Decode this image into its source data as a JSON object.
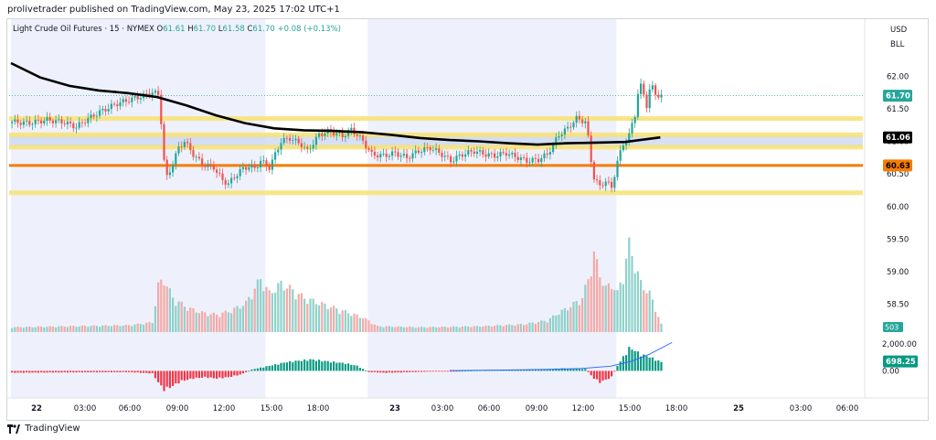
{
  "header": {
    "publisher_line": "prolivetrader published on TradingView.com, May 23, 2025 17:02 UTC+1"
  },
  "footer": {
    "brand": "TradingView"
  },
  "legend": {
    "symbol": "Light Crude Oil Futures · 15 · NYMEX",
    "o_label": "O",
    "o_value": "61.61",
    "h_label": "H",
    "h_value": "61.70",
    "l_label": "L",
    "l_value": "61.58",
    "c_label": "C",
    "c_value": "61.70",
    "change": "+0.08 (+0.13%)"
  },
  "price_scale": {
    "currency": "USD",
    "unit": "BLL"
  },
  "colors": {
    "up": "#26a69a",
    "down": "#ef5350",
    "session_shade": "#eef1fb",
    "ma_line": "#000000",
    "yellow_line": "#f7e27a",
    "orange_line": "#f57c00",
    "blue_zone": "#c9d6f0",
    "last_price_badge": "#26a69a",
    "osc_fast": "#2962ff"
  },
  "chart_data": {
    "type": "candlestick",
    "timeframe": "15",
    "price_axis": {
      "ylim": [
        58.2,
        62.2
      ],
      "ticks": [
        "62.00",
        "61.50",
        "61.00",
        "60.50",
        "60.00",
        "59.50",
        "59.00",
        "58.50"
      ],
      "tick_values": [
        62.0,
        61.5,
        61.0,
        60.5,
        60.0,
        59.5,
        59.0,
        58.5
      ]
    },
    "badges": [
      {
        "label": "61.70",
        "value": 61.7,
        "color": "#26a69a",
        "text_color": "#ffffff"
      },
      {
        "label": "61.06",
        "value": 61.06,
        "color": "#000000",
        "text_color": "#ffffff"
      },
      {
        "label": "60.63",
        "value": 60.63,
        "color": "#f57c00",
        "text_color": "#000000"
      }
    ],
    "last_price": 61.7,
    "x_axis": {
      "ticks": [
        "22",
        "03:00",
        "06:00",
        "09:00",
        "12:00",
        "15:00",
        "18:00",
        "23",
        "03:00",
        "06:00",
        "09:00",
        "12:00",
        "15:00",
        "18:00",
        "25",
        "03:00",
        "06:00"
      ],
      "bold": [
        true,
        false,
        false,
        false,
        false,
        false,
        false,
        true,
        false,
        false,
        false,
        false,
        false,
        false,
        true,
        false,
        false
      ]
    },
    "horizontal_lines": [
      {
        "name": "yellow-level-1",
        "value": 61.35,
        "color": "#f7e27a"
      },
      {
        "name": "yellow-level-2",
        "value": 61.1,
        "color": "#f7e27a"
      },
      {
        "name": "yellow-level-3",
        "value": 60.91,
        "color": "#f7e27a"
      },
      {
        "name": "orange-level",
        "value": 60.63,
        "color": "#f57c00"
      },
      {
        "name": "yellow-level-4",
        "value": 60.21,
        "color": "#f7e27a"
      }
    ],
    "zones": [
      {
        "name": "blue-zone",
        "from": 60.91,
        "to": 61.1
      }
    ],
    "close_path": [
      [
        0,
        61.3
      ],
      [
        6,
        61.28
      ],
      [
        12,
        61.33
      ],
      [
        18,
        61.29
      ],
      [
        22,
        61.22
      ],
      [
        25,
        61.32
      ],
      [
        30,
        61.45
      ],
      [
        36,
        61.58
      ],
      [
        41,
        61.65
      ],
      [
        45,
        61.7
      ],
      [
        48,
        61.75
      ],
      [
        50,
        61.72
      ],
      [
        51,
        61.3
      ],
      [
        52,
        60.7
      ],
      [
        53,
        60.45
      ],
      [
        54,
        60.55
      ],
      [
        57,
        60.9
      ],
      [
        59,
        61.0
      ],
      [
        62,
        60.8
      ],
      [
        65,
        60.65
      ],
      [
        69,
        60.6
      ],
      [
        72,
        60.4
      ],
      [
        74,
        60.35
      ],
      [
        78,
        60.55
      ],
      [
        81,
        60.62
      ],
      [
        83,
        60.58
      ],
      [
        85,
        60.7
      ],
      [
        88,
        60.6
      ],
      [
        92,
        61.0
      ],
      [
        95,
        61.05
      ],
      [
        99,
        60.95
      ],
      [
        101,
        60.85
      ],
      [
        105,
        61.1
      ],
      [
        108,
        61.15
      ],
      [
        111,
        61.12
      ],
      [
        113,
        61.08
      ],
      [
        116,
        61.18
      ],
      [
        118,
        61.1
      ],
      [
        120,
        61.0
      ],
      [
        123,
        60.8
      ],
      [
        127,
        60.78
      ],
      [
        131,
        60.82
      ],
      [
        135,
        60.75
      ],
      [
        139,
        60.85
      ],
      [
        143,
        60.9
      ],
      [
        147,
        60.8
      ],
      [
        150,
        60.7
      ],
      [
        154,
        60.8
      ],
      [
        158,
        60.85
      ],
      [
        162,
        60.8
      ],
      [
        165,
        60.78
      ],
      [
        169,
        60.82
      ],
      [
        173,
        60.75
      ],
      [
        176,
        60.7
      ],
      [
        180,
        60.72
      ],
      [
        183,
        60.8
      ],
      [
        187,
        61.1
      ],
      [
        190,
        61.2
      ],
      [
        193,
        61.35
      ],
      [
        196,
        61.3
      ],
      [
        197,
        61.05
      ],
      [
        198,
        60.7
      ],
      [
        199,
        60.45
      ],
      [
        201,
        60.3
      ],
      [
        203,
        60.4
      ],
      [
        205,
        60.28
      ],
      [
        207,
        60.7
      ],
      [
        209,
        60.95
      ],
      [
        211,
        61.1
      ],
      [
        213,
        61.4
      ],
      [
        214,
        61.75
      ],
      [
        215,
        61.85
      ],
      [
        216,
        61.7
      ],
      [
        217,
        61.55
      ],
      [
        218,
        61.8
      ],
      [
        219,
        61.82
      ],
      [
        220,
        61.72
      ],
      [
        222,
        61.7
      ]
    ],
    "session_shading": [
      {
        "from": 0,
        "to": 87
      },
      {
        "from": 122,
        "to": 207
      }
    ],
    "moving_average": [
      [
        0,
        62.2
      ],
      [
        10,
        61.98
      ],
      [
        20,
        61.85
      ],
      [
        30,
        61.78
      ],
      [
        40,
        61.74
      ],
      [
        50,
        61.68
      ],
      [
        60,
        61.55
      ],
      [
        70,
        61.4
      ],
      [
        80,
        61.28
      ],
      [
        90,
        61.2
      ],
      [
        100,
        61.17
      ],
      [
        110,
        61.16
      ],
      [
        120,
        61.14
      ],
      [
        130,
        61.1
      ],
      [
        140,
        61.05
      ],
      [
        150,
        61.02
      ],
      [
        160,
        61.0
      ],
      [
        170,
        60.97
      ],
      [
        180,
        60.95
      ],
      [
        190,
        60.97
      ],
      [
        200,
        60.98
      ],
      [
        210,
        60.99
      ],
      [
        222,
        61.06
      ]
    ],
    "volume": {
      "last_label": "503",
      "ylim": [
        0,
        1.0
      ],
      "profile": [
        [
          0,
          0.05
        ],
        [
          20,
          0.06
        ],
        [
          40,
          0.07
        ],
        [
          48,
          0.1
        ],
        [
          50,
          0.48
        ],
        [
          52,
          0.55
        ],
        [
          55,
          0.35
        ],
        [
          60,
          0.25
        ],
        [
          65,
          0.2
        ],
        [
          70,
          0.18
        ],
        [
          75,
          0.22
        ],
        [
          80,
          0.3
        ],
        [
          85,
          0.55
        ],
        [
          88,
          0.4
        ],
        [
          92,
          0.5
        ],
        [
          95,
          0.45
        ],
        [
          100,
          0.35
        ],
        [
          105,
          0.3
        ],
        [
          110,
          0.25
        ],
        [
          115,
          0.2
        ],
        [
          120,
          0.15
        ],
        [
          125,
          0.06
        ],
        [
          140,
          0.05
        ],
        [
          160,
          0.06
        ],
        [
          175,
          0.08
        ],
        [
          183,
          0.12
        ],
        [
          187,
          0.2
        ],
        [
          190,
          0.25
        ],
        [
          195,
          0.35
        ],
        [
          197,
          0.55
        ],
        [
          199,
          0.8
        ],
        [
          201,
          0.6
        ],
        [
          203,
          0.45
        ],
        [
          205,
          0.5
        ],
        [
          207,
          0.4
        ],
        [
          209,
          0.6
        ],
        [
          211,
          0.9
        ],
        [
          213,
          0.7
        ],
        [
          215,
          0.5
        ],
        [
          218,
          0.4
        ],
        [
          222,
          0.08
        ]
      ]
    },
    "oscillator": {
      "last_label": "698.25",
      "tick_labels": [
        "2,000.00",
        "0.00"
      ],
      "tick_values": [
        2000,
        0
      ],
      "ylim": [
        -2000,
        2600
      ],
      "histogram": [
        [
          0,
          -150
        ],
        [
          20,
          -120
        ],
        [
          40,
          -100
        ],
        [
          48,
          -200
        ],
        [
          50,
          -900
        ],
        [
          52,
          -1500
        ],
        [
          54,
          -1300
        ],
        [
          58,
          -800
        ],
        [
          62,
          -600
        ],
        [
          66,
          -500
        ],
        [
          70,
          -600
        ],
        [
          74,
          -500
        ],
        [
          78,
          -300
        ],
        [
          82,
          100
        ],
        [
          86,
          300
        ],
        [
          90,
          500
        ],
        [
          94,
          700
        ],
        [
          98,
          800
        ],
        [
          102,
          900
        ],
        [
          106,
          800
        ],
        [
          110,
          700
        ],
        [
          114,
          600
        ],
        [
          118,
          400
        ],
        [
          122,
          -100
        ],
        [
          128,
          -150
        ],
        [
          140,
          -80
        ],
        [
          160,
          50
        ],
        [
          180,
          100
        ],
        [
          188,
          200
        ],
        [
          196,
          150
        ],
        [
          199,
          -600
        ],
        [
          201,
          -900
        ],
        [
          203,
          -700
        ],
        [
          205,
          -500
        ],
        [
          207,
          400
        ],
        [
          209,
          1100
        ],
        [
          211,
          1800
        ],
        [
          213,
          1600
        ],
        [
          215,
          1300
        ],
        [
          218,
          1100
        ],
        [
          222,
          698
        ]
      ],
      "signal_line": [
        [
          150,
          20
        ],
        [
          170,
          60
        ],
        [
          185,
          120
        ],
        [
          195,
          180
        ],
        [
          205,
          350
        ],
        [
          212,
          700
        ],
        [
          218,
          1200
        ],
        [
          226,
          2100
        ]
      ]
    }
  }
}
